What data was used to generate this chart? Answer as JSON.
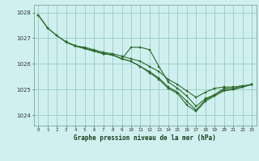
{
  "title": "Graphe pression niveau de la mer (hPa)",
  "background_color": "#cff0ee",
  "grid_color": "#9ecfcc",
  "line_color": "#2d6a2d",
  "xlim": [
    -0.5,
    23.5
  ],
  "ylim": [
    1023.6,
    1028.3
  ],
  "yticks": [
    1024,
    1025,
    1026,
    1027,
    1028
  ],
  "xticks": [
    0,
    1,
    2,
    3,
    4,
    5,
    6,
    7,
    8,
    9,
    10,
    11,
    12,
    13,
    14,
    15,
    16,
    17,
    18,
    19,
    20,
    21,
    22,
    23
  ],
  "series": [
    {
      "x": [
        0,
        1,
        2,
        3,
        4,
        5,
        6,
        7,
        8,
        9,
        10,
        11,
        12,
        13,
        14,
        15,
        16,
        17,
        18,
        19,
        20,
        21,
        22
      ],
      "y": [
        1027.9,
        1027.4,
        1027.1,
        1026.85,
        1026.7,
        1026.65,
        1026.55,
        1026.45,
        1026.4,
        1026.3,
        1026.2,
        1026.1,
        1025.9,
        1025.7,
        1025.4,
        1025.2,
        1024.95,
        1024.7,
        1024.9,
        1025.05,
        1025.1,
        1025.1,
        1025.15
      ]
    },
    {
      "x": [
        0,
        1,
        2,
        3,
        4,
        5,
        6,
        7,
        8,
        9,
        10,
        11,
        12,
        13,
        14,
        15,
        16,
        17,
        18,
        19,
        20,
        21,
        22,
        23
      ],
      "y": [
        1027.9,
        1027.4,
        1027.1,
        1026.85,
        1026.7,
        1026.6,
        1026.5,
        1026.4,
        1026.35,
        1026.2,
        1026.65,
        1026.65,
        1026.55,
        1025.9,
        1025.3,
        1025.05,
        1024.75,
        1024.35,
        1024.65,
        1024.8,
        1025.05,
        1025.05,
        1025.15,
        1025.2
      ]
    },
    {
      "x": [
        3,
        4,
        5,
        6,
        7,
        8,
        9,
        10,
        11,
        12,
        13,
        14,
        15,
        16,
        17,
        18,
        19,
        20,
        21,
        22,
        23
      ],
      "y": [
        1026.85,
        1026.7,
        1026.6,
        1026.5,
        1026.4,
        1026.35,
        1026.2,
        1026.1,
        1025.9,
        1025.7,
        1025.45,
        1025.1,
        1024.9,
        1024.55,
        1024.2,
        1024.6,
        1024.8,
        1025.0,
        1025.0,
        1025.1,
        1025.2
      ]
    },
    {
      "x": [
        3,
        4,
        5,
        6,
        7,
        8,
        9,
        10,
        11,
        12,
        13,
        14,
        15,
        16,
        17,
        18,
        19,
        20,
        21,
        22,
        23
      ],
      "y": [
        1026.85,
        1026.7,
        1026.6,
        1026.5,
        1026.4,
        1026.35,
        1026.2,
        1026.1,
        1025.9,
        1025.65,
        1025.4,
        1025.05,
        1024.85,
        1024.4,
        1024.15,
        1024.55,
        1024.75,
        1024.95,
        1025.0,
        1025.1,
        1025.2
      ]
    }
  ]
}
